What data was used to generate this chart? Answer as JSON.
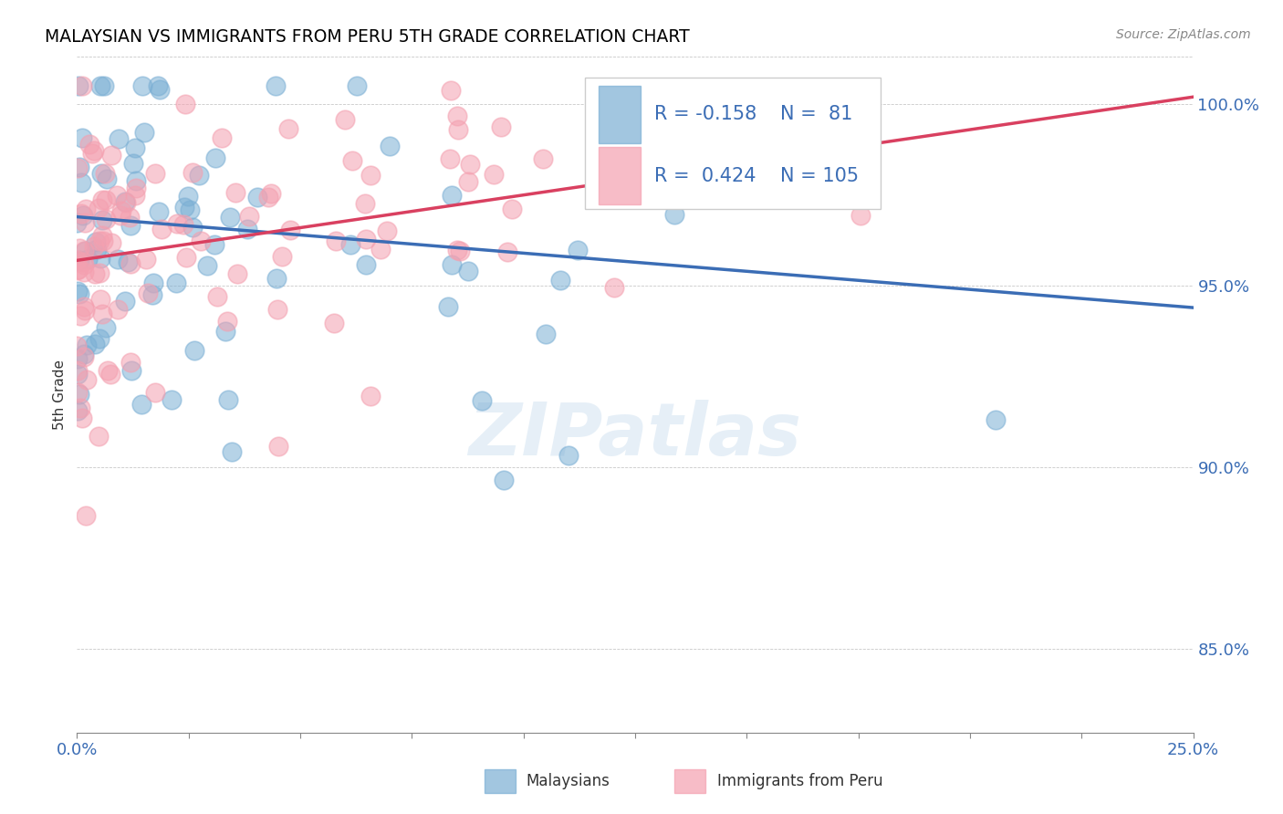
{
  "title": "MALAYSIAN VS IMMIGRANTS FROM PERU 5TH GRADE CORRELATION CHART",
  "source": "Source: ZipAtlas.com",
  "ylabel": "5th Grade",
  "ytick_values": [
    0.85,
    0.9,
    0.95,
    1.0
  ],
  "xmin": 0.0,
  "xmax": 0.25,
  "ymin": 0.827,
  "ymax": 1.013,
  "legend_R_blue": "-0.158",
  "legend_N_blue": "81",
  "legend_R_pink": "0.424",
  "legend_N_pink": "105",
  "blue_color": "#7BAFD4",
  "pink_color": "#F4A0B0",
  "trendline_blue_color": "#3B6DB5",
  "trendline_pink_color": "#D94060",
  "watermark": "ZIPatlas",
  "blue_trendline_x0": 0.0,
  "blue_trendline_y0": 0.969,
  "blue_trendline_x1": 0.25,
  "blue_trendline_y1": 0.944,
  "pink_trendline_x0": 0.0,
  "pink_trendline_y0": 0.957,
  "pink_trendline_x1": 0.25,
  "pink_trendline_y1": 1.002
}
